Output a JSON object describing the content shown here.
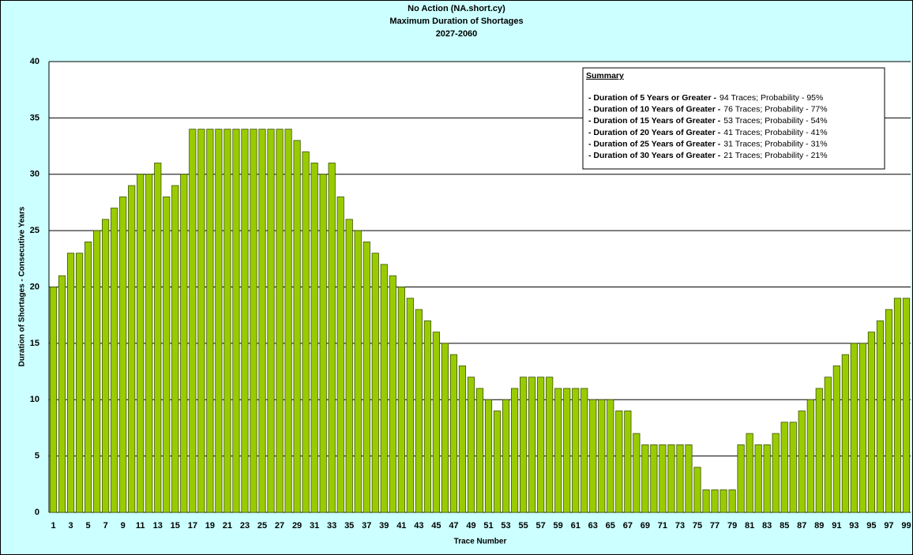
{
  "chart_data": {
    "type": "bar",
    "title": "No Action (NA.short.cy)",
    "subtitle": "Maximum Duration of Shortages",
    "period": "2027-2060",
    "y_label": "Duration of Shortages - Consecutive Years",
    "x_label": "Trace Number",
    "categories": [
      "1",
      null,
      "3",
      null,
      "5",
      null,
      "7",
      null,
      "9",
      null,
      "11",
      null,
      "13",
      null,
      "15",
      null,
      "17",
      null,
      "19",
      null,
      "21",
      null,
      "23",
      null,
      "25",
      null,
      "27",
      null,
      "29",
      null,
      "31",
      null,
      "33",
      null,
      "35",
      null,
      "37",
      null,
      "39",
      null,
      "41",
      null,
      "43",
      null,
      "45",
      null,
      "47",
      null,
      "49",
      null,
      "51",
      null,
      "53",
      null,
      "55",
      null,
      "57",
      null,
      "59",
      null,
      "61",
      null,
      "63",
      null,
      "65",
      null,
      "67",
      null,
      "69",
      null,
      "71",
      null,
      "73",
      null,
      "75",
      null,
      "77",
      null,
      "79",
      null,
      "81",
      null,
      "83",
      null,
      "85",
      null,
      "87",
      null,
      "89",
      null,
      "91",
      null,
      "93",
      null,
      "95",
      null,
      "97",
      null,
      "99"
    ],
    "values": [
      20,
      21,
      23,
      23,
      24,
      25,
      26,
      27,
      28,
      29,
      30,
      30,
      31,
      28,
      29,
      30,
      34,
      34,
      34,
      34,
      34,
      34,
      34,
      34,
      34,
      34,
      34,
      34,
      33,
      32,
      31,
      30,
      31,
      28,
      26,
      25,
      24,
      23,
      22,
      21,
      20,
      19,
      18,
      17,
      16,
      15,
      14,
      13,
      12,
      11,
      10,
      9,
      10,
      11,
      12,
      12,
      12,
      12,
      11,
      11,
      11,
      11,
      10,
      10,
      10,
      9,
      9,
      7,
      6,
      6,
      6,
      6,
      6,
      6,
      4,
      2,
      2,
      2,
      2,
      6,
      7,
      6,
      6,
      7,
      8,
      8,
      9,
      10,
      11,
      12,
      13,
      14,
      15,
      15,
      16,
      17,
      18,
      19,
      19
    ],
    "color": "#99cc00",
    "ylim": [
      0,
      40
    ],
    "yticks": [
      0,
      5,
      10,
      15,
      20,
      25,
      30,
      35,
      40
    ],
    "grid": true,
    "summary": {
      "title": "Summary",
      "items": [
        {
          "label": "- Duration of 5 Years or Greater -",
          "detail": "94 Traces; Probability - 95%"
        },
        {
          "label": "- Duration of 10 Years of Greater -",
          "detail": "76 Traces; Probability - 77%"
        },
        {
          "label": "- Duration of 15 Years of Greater -",
          "detail": "53 Traces; Probability - 54%"
        },
        {
          "label": "- Duration of 20 Years of Greater -",
          "detail": "41 Traces; Probability - 41%"
        },
        {
          "label": "- Duration of 25 Years of Greater -",
          "detail": "31 Traces; Probability - 31%"
        },
        {
          "label": "- Duration of 30 Years of Greater -",
          "detail": "21 Traces; Probability - 21%"
        }
      ]
    }
  }
}
